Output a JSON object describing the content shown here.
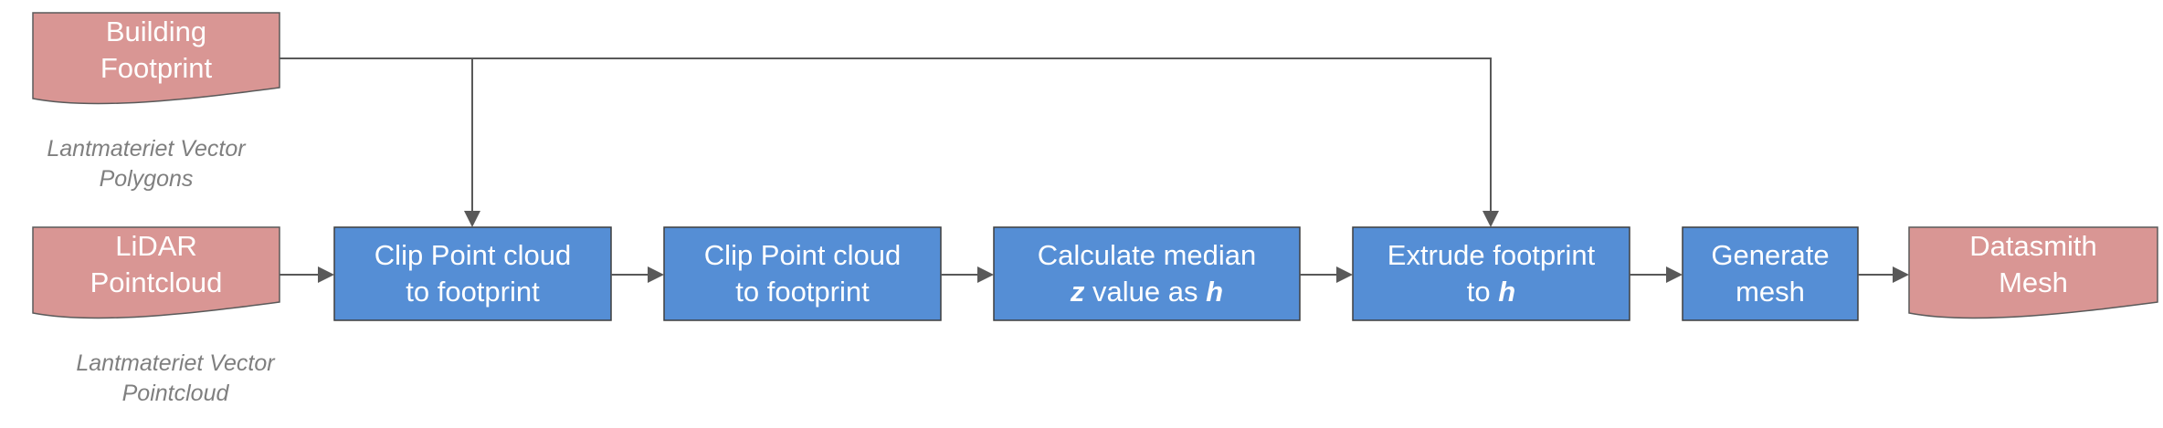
{
  "inputs": {
    "building_footprint": {
      "line1": "Building",
      "line2": "Footprint"
    },
    "lidar": {
      "line1": "LiDAR",
      "line2": "Pointcloud"
    }
  },
  "notes": {
    "footprint_source": {
      "line1": "Lantmateriet Vector",
      "line2": "Polygons"
    },
    "lidar_source": {
      "line1": "Lantmateriet Vector",
      "line2": "Pointcloud"
    }
  },
  "steps": {
    "clip1": {
      "line1": "Clip Point cloud",
      "line2": "to footprint"
    },
    "clip2": {
      "line1": "Clip Point cloud",
      "line2": "to footprint"
    },
    "median": {
      "line1": "Calculate median",
      "var_z": "z",
      "mid": " value as ",
      "var_h": "h"
    },
    "extrude": {
      "line1": "Extrude footprint",
      "prefix": "to ",
      "var_h": "h"
    },
    "generate": {
      "line1": "Generate",
      "line2": "mesh"
    }
  },
  "output": {
    "line1": "Datasmith",
    "line2": "Mesh"
  },
  "colors": {
    "document_fill": "#d99694",
    "process_fill": "#558ed5",
    "connector": "#595959",
    "note_text": "#7f7f7f"
  }
}
